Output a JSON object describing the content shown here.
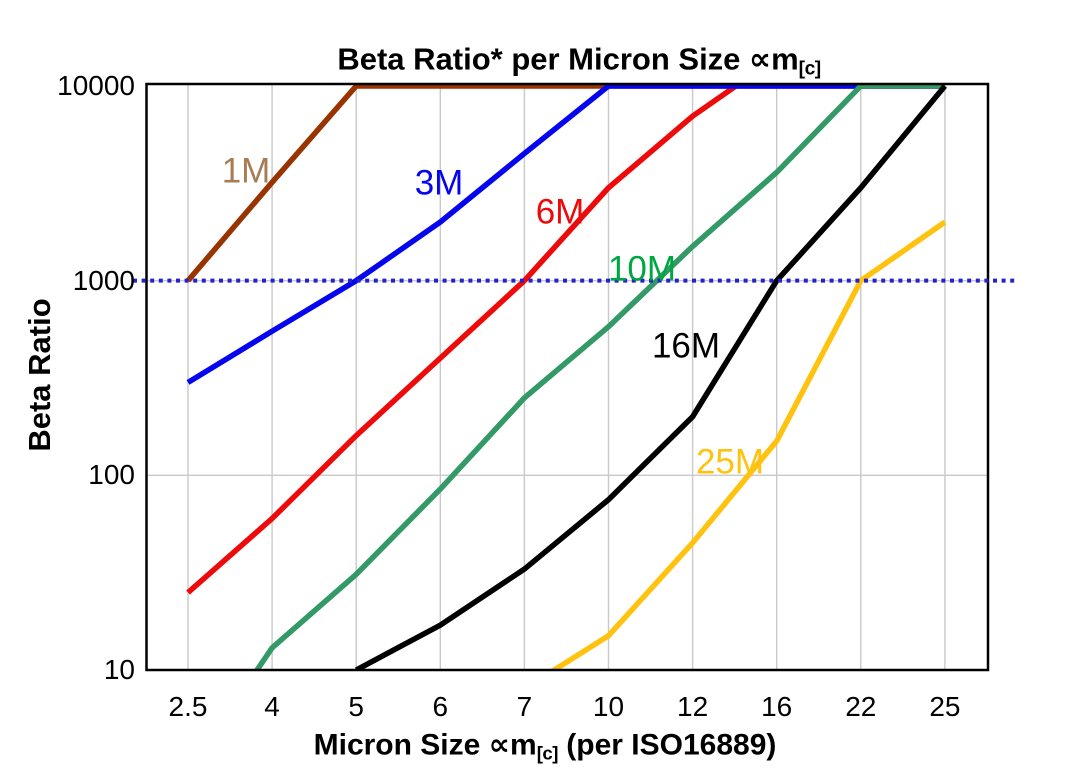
{
  "chart_data": {
    "type": "line",
    "title": "Beta Ratio* per Micron Size ∝m[c]",
    "title_parts": {
      "main": "Beta Ratio* per Micron Size ∝m",
      "sub": "[c]"
    },
    "xlabel": "Micron Size ∝m[c] (per ISO16889)",
    "xlabel_parts": {
      "pre": "Micron Size ∝m",
      "sub": "[c]",
      "post": " (per ISO16889)"
    },
    "ylabel": "Beta Ratio",
    "x_categories": [
      "2.5",
      "4",
      "5",
      "6",
      "7",
      "10",
      "12",
      "16",
      "22",
      "25"
    ],
    "y_scale": "log",
    "ylim": [
      10,
      10000
    ],
    "y_tick_labels": [
      "10000",
      "1000",
      "100",
      "10"
    ],
    "y_tick_values": [
      10000,
      1000,
      100,
      10
    ],
    "grid": {
      "vertical": true,
      "horizontal_at": [
        100,
        1000
      ],
      "color": "#c9c9c9"
    },
    "frame_color": "#000000",
    "reference_line": {
      "value": 1000,
      "style": "dotted",
      "color": "#2323cc"
    },
    "legend_position": "inline-labels",
    "series": [
      {
        "name": "1M",
        "color": "#993300",
        "label_color": "#a87c52",
        "values": [
          1000,
          3200,
          10000,
          10000,
          10000,
          10000,
          10000,
          10000,
          10000,
          10000
        ]
      },
      {
        "name": "3M",
        "color": "#0505ee",
        "label_color": "#0505ee",
        "values": [
          300,
          550,
          1000,
          2000,
          4500,
          10000,
          10000,
          10000,
          10000,
          10000
        ]
      },
      {
        "name": "6M",
        "color": "#ee0a0a",
        "label_color": "#ee0a0a",
        "values": [
          25,
          60,
          160,
          400,
          1000,
          3000,
          7000,
          14000,
          14000,
          14000
        ]
      },
      {
        "name": "10M",
        "color": "#339966",
        "label_color": "#00a640",
        "values": [
          3,
          13,
          31,
          85,
          250,
          580,
          1500,
          3600,
          10000,
          10000
        ]
      },
      {
        "name": "16M",
        "color": "#000000",
        "label_color": "#000000",
        "values": [
          null,
          null,
          10,
          17,
          33,
          75,
          200,
          1000,
          3000,
          10000
        ]
      },
      {
        "name": "25M",
        "color": "#ffc30f",
        "label_color": "#ffc30f",
        "values": [
          null,
          null,
          null,
          null,
          8,
          15,
          45,
          150,
          1000,
          2000
        ]
      }
    ]
  }
}
